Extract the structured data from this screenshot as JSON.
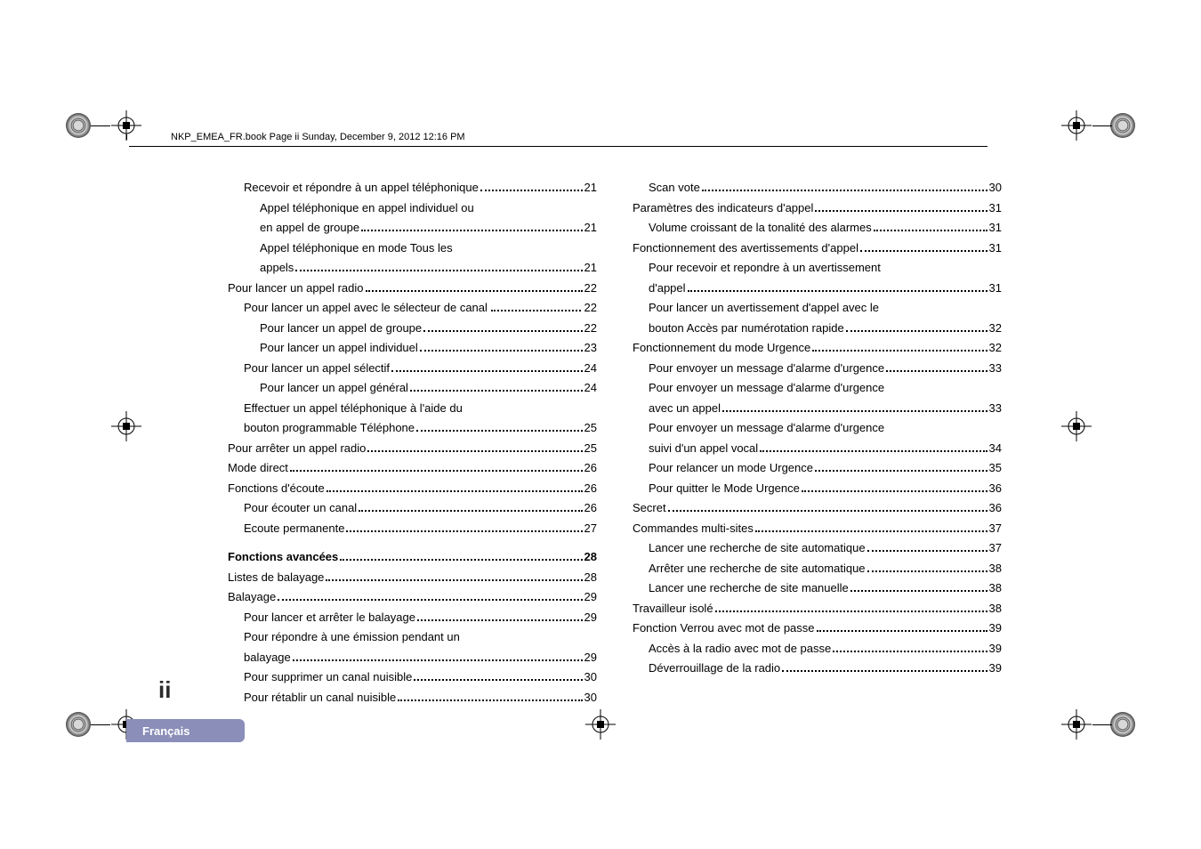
{
  "header": "NKP_EMEA_FR.book  Page ii  Sunday, December 9, 2012  12:16 PM",
  "page_number": "ii",
  "tab_label": "Français",
  "left_col": [
    {
      "indent": 1,
      "text": "Recevoir et répondre à un appel téléphonique",
      "pg": "21",
      "wrap": false
    },
    {
      "indent": 2,
      "text": "Appel téléphonique en appel individuel ou",
      "wrap": true
    },
    {
      "indent": 2,
      "text": "en appel de groupe",
      "pg": "21"
    },
    {
      "indent": 2,
      "text": "Appel téléphonique en mode Tous les",
      "wrap": true
    },
    {
      "indent": 2,
      "text": "appels",
      "pg": "21"
    },
    {
      "indent": 0,
      "text": "Pour lancer un appel radio",
      "pg": "22"
    },
    {
      "indent": 1,
      "text": "Pour lancer un appel avec le sélecteur de canal",
      "pg": "22",
      "tight": true
    },
    {
      "indent": 2,
      "text": "Pour lancer un appel de groupe",
      "pg": "22"
    },
    {
      "indent": 2,
      "text": "Pour lancer un appel individuel",
      "pg": "23"
    },
    {
      "indent": 1,
      "text": "Pour lancer un appel sélectif",
      "pg": "24"
    },
    {
      "indent": 2,
      "text": "Pour lancer un appel général",
      "pg": "24"
    },
    {
      "indent": 1,
      "text": "Effectuer un appel téléphonique à l'aide du",
      "wrap": true
    },
    {
      "indent": 1,
      "text": "bouton programmable Téléphone",
      "pg": "25"
    },
    {
      "indent": 0,
      "text": "Pour arrêter un appel radio",
      "pg": "25"
    },
    {
      "indent": 0,
      "text": "Mode direct",
      "pg": "26"
    },
    {
      "indent": 0,
      "text": "Fonctions d'écoute",
      "pg": "26"
    },
    {
      "indent": 1,
      "text": "Pour écouter un canal",
      "pg": "26"
    },
    {
      "indent": 1,
      "text": "Ecoute permanente",
      "pg": "27"
    },
    {
      "indent": 0,
      "text": "Fonctions avancées",
      "pg": "28",
      "bold": true,
      "gap": true
    },
    {
      "indent": 0,
      "text": "Listes de balayage",
      "pg": "28"
    },
    {
      "indent": 0,
      "text": "Balayage",
      "pg": "29"
    },
    {
      "indent": 1,
      "text": "Pour lancer et arrêter le balayage",
      "pg": "29"
    },
    {
      "indent": 1,
      "text": "Pour répondre à une émission pendant un",
      "wrap": true
    },
    {
      "indent": 1,
      "text": "balayage",
      "pg": "29"
    },
    {
      "indent": 1,
      "text": "Pour supprimer un canal nuisible",
      "pg": "30"
    },
    {
      "indent": 1,
      "text": "Pour rétablir un canal nuisible",
      "pg": "30"
    }
  ],
  "right_col": [
    {
      "indent": 1,
      "text": "Scan vote",
      "pg": "30"
    },
    {
      "indent": 0,
      "text": "Paramètres des indicateurs d'appel",
      "pg": "31"
    },
    {
      "indent": 1,
      "text": "Volume croissant de la tonalité des alarmes",
      "pg": "31"
    },
    {
      "indent": 0,
      "text": "Fonctionnement des avertissements d'appel",
      "pg": "31"
    },
    {
      "indent": 1,
      "text": "Pour recevoir et repondre à un avertissement",
      "wrap": true
    },
    {
      "indent": 1,
      "text": "d'appel",
      "pg": "31"
    },
    {
      "indent": 1,
      "text": "Pour lancer un avertissement d'appel avec le",
      "wrap": true
    },
    {
      "indent": 1,
      "text": "bouton Accès par numérotation rapide",
      "pg": "32"
    },
    {
      "indent": 0,
      "text": "Fonctionnement du mode Urgence",
      "pg": "32"
    },
    {
      "indent": 1,
      "text": "Pour envoyer un message d'alarme d'urgence",
      "pg": "33"
    },
    {
      "indent": 1,
      "text": "Pour envoyer un message d'alarme d'urgence",
      "wrap": true
    },
    {
      "indent": 1,
      "text": "avec un appel",
      "pg": "33"
    },
    {
      "indent": 1,
      "text": "Pour envoyer un message d'alarme d'urgence",
      "wrap": true
    },
    {
      "indent": 1,
      "text": "suivi d'un appel vocal",
      "pg": "34"
    },
    {
      "indent": 1,
      "text": "Pour relancer un mode Urgence",
      "pg": "35"
    },
    {
      "indent": 1,
      "text": "Pour quitter le Mode Urgence",
      "pg": "36"
    },
    {
      "indent": 0,
      "text": "Secret",
      "pg": "36"
    },
    {
      "indent": 0,
      "text": "Commandes multi-sites",
      "pg": "37"
    },
    {
      "indent": 1,
      "text": "Lancer une recherche de site automatique",
      "pg": "37"
    },
    {
      "indent": 1,
      "text": "Arrêter une recherche de site automatique",
      "pg": "38"
    },
    {
      "indent": 1,
      "text": "Lancer une recherche de site manuelle",
      "pg": "38"
    },
    {
      "indent": 0,
      "text": "Travailleur isolé",
      "pg": "38"
    },
    {
      "indent": 0,
      "text": "Fonction Verrou avec mot de passe",
      "pg": "39"
    },
    {
      "indent": 1,
      "text": "Accès à la radio avec mot de passe",
      "pg": "39"
    },
    {
      "indent": 1,
      "text": "Déverrouillage de la radio",
      "pg": "39"
    }
  ]
}
